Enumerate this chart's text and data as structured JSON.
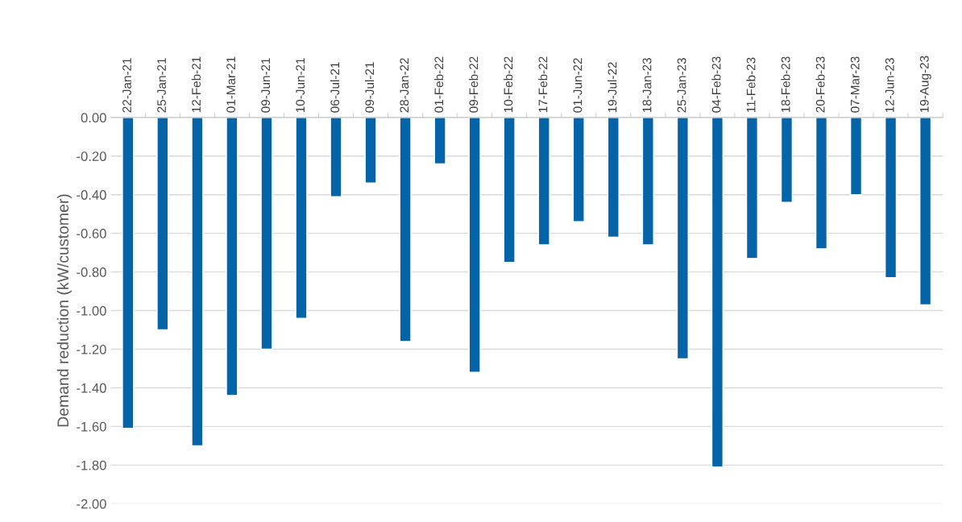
{
  "chart_data": {
    "type": "bar",
    "ylabel": "Demand reduction (kW/customer)",
    "categories": [
      "22-Jan-21",
      "25-Jan-21",
      "12-Feb-21",
      "01-Mar-21",
      "09-Jun-21",
      "10-Jun-21",
      "06-Jul-21",
      "09-Jul-21",
      "28-Jan-22",
      "01-Feb-22",
      "09-Feb-22",
      "10-Feb-22",
      "17-Feb-22",
      "01-Jun-22",
      "19-Jul-22",
      "18-Jan-23",
      "25-Jan-23",
      "04-Feb-23",
      "11-Feb-23",
      "18-Feb-23",
      "20-Feb-23",
      "07-Mar-23",
      "12-Jun-23",
      "19-Aug-23"
    ],
    "values": [
      -1.61,
      -1.1,
      -1.7,
      -1.44,
      -1.2,
      -1.04,
      -0.41,
      -0.34,
      -1.16,
      -0.24,
      -1.32,
      -0.75,
      -0.66,
      -0.54,
      -0.62,
      -0.66,
      -1.25,
      -1.81,
      -0.73,
      -0.44,
      -0.68,
      -0.4,
      -0.83,
      -0.97
    ],
    "color": "#0563a8",
    "ylim": [
      -2.0,
      0.0
    ],
    "yticks": [
      {
        "value": -2.0,
        "label": "-2.00"
      },
      {
        "value": -1.8,
        "label": "-1.80"
      },
      {
        "value": -1.6,
        "label": "-1.60"
      },
      {
        "value": -1.4,
        "label": "-1.40"
      },
      {
        "value": -1.2,
        "label": "-1.20"
      },
      {
        "value": -1.0,
        "label": "-1.00"
      },
      {
        "value": -0.8,
        "label": "-0.80"
      },
      {
        "value": -0.6,
        "label": "-0.60"
      },
      {
        "value": -0.4,
        "label": "-0.40"
      },
      {
        "value": -0.2,
        "label": "-0.20"
      },
      {
        "value": 0.0,
        "label": "0.00"
      }
    ],
    "grid": "y"
  }
}
